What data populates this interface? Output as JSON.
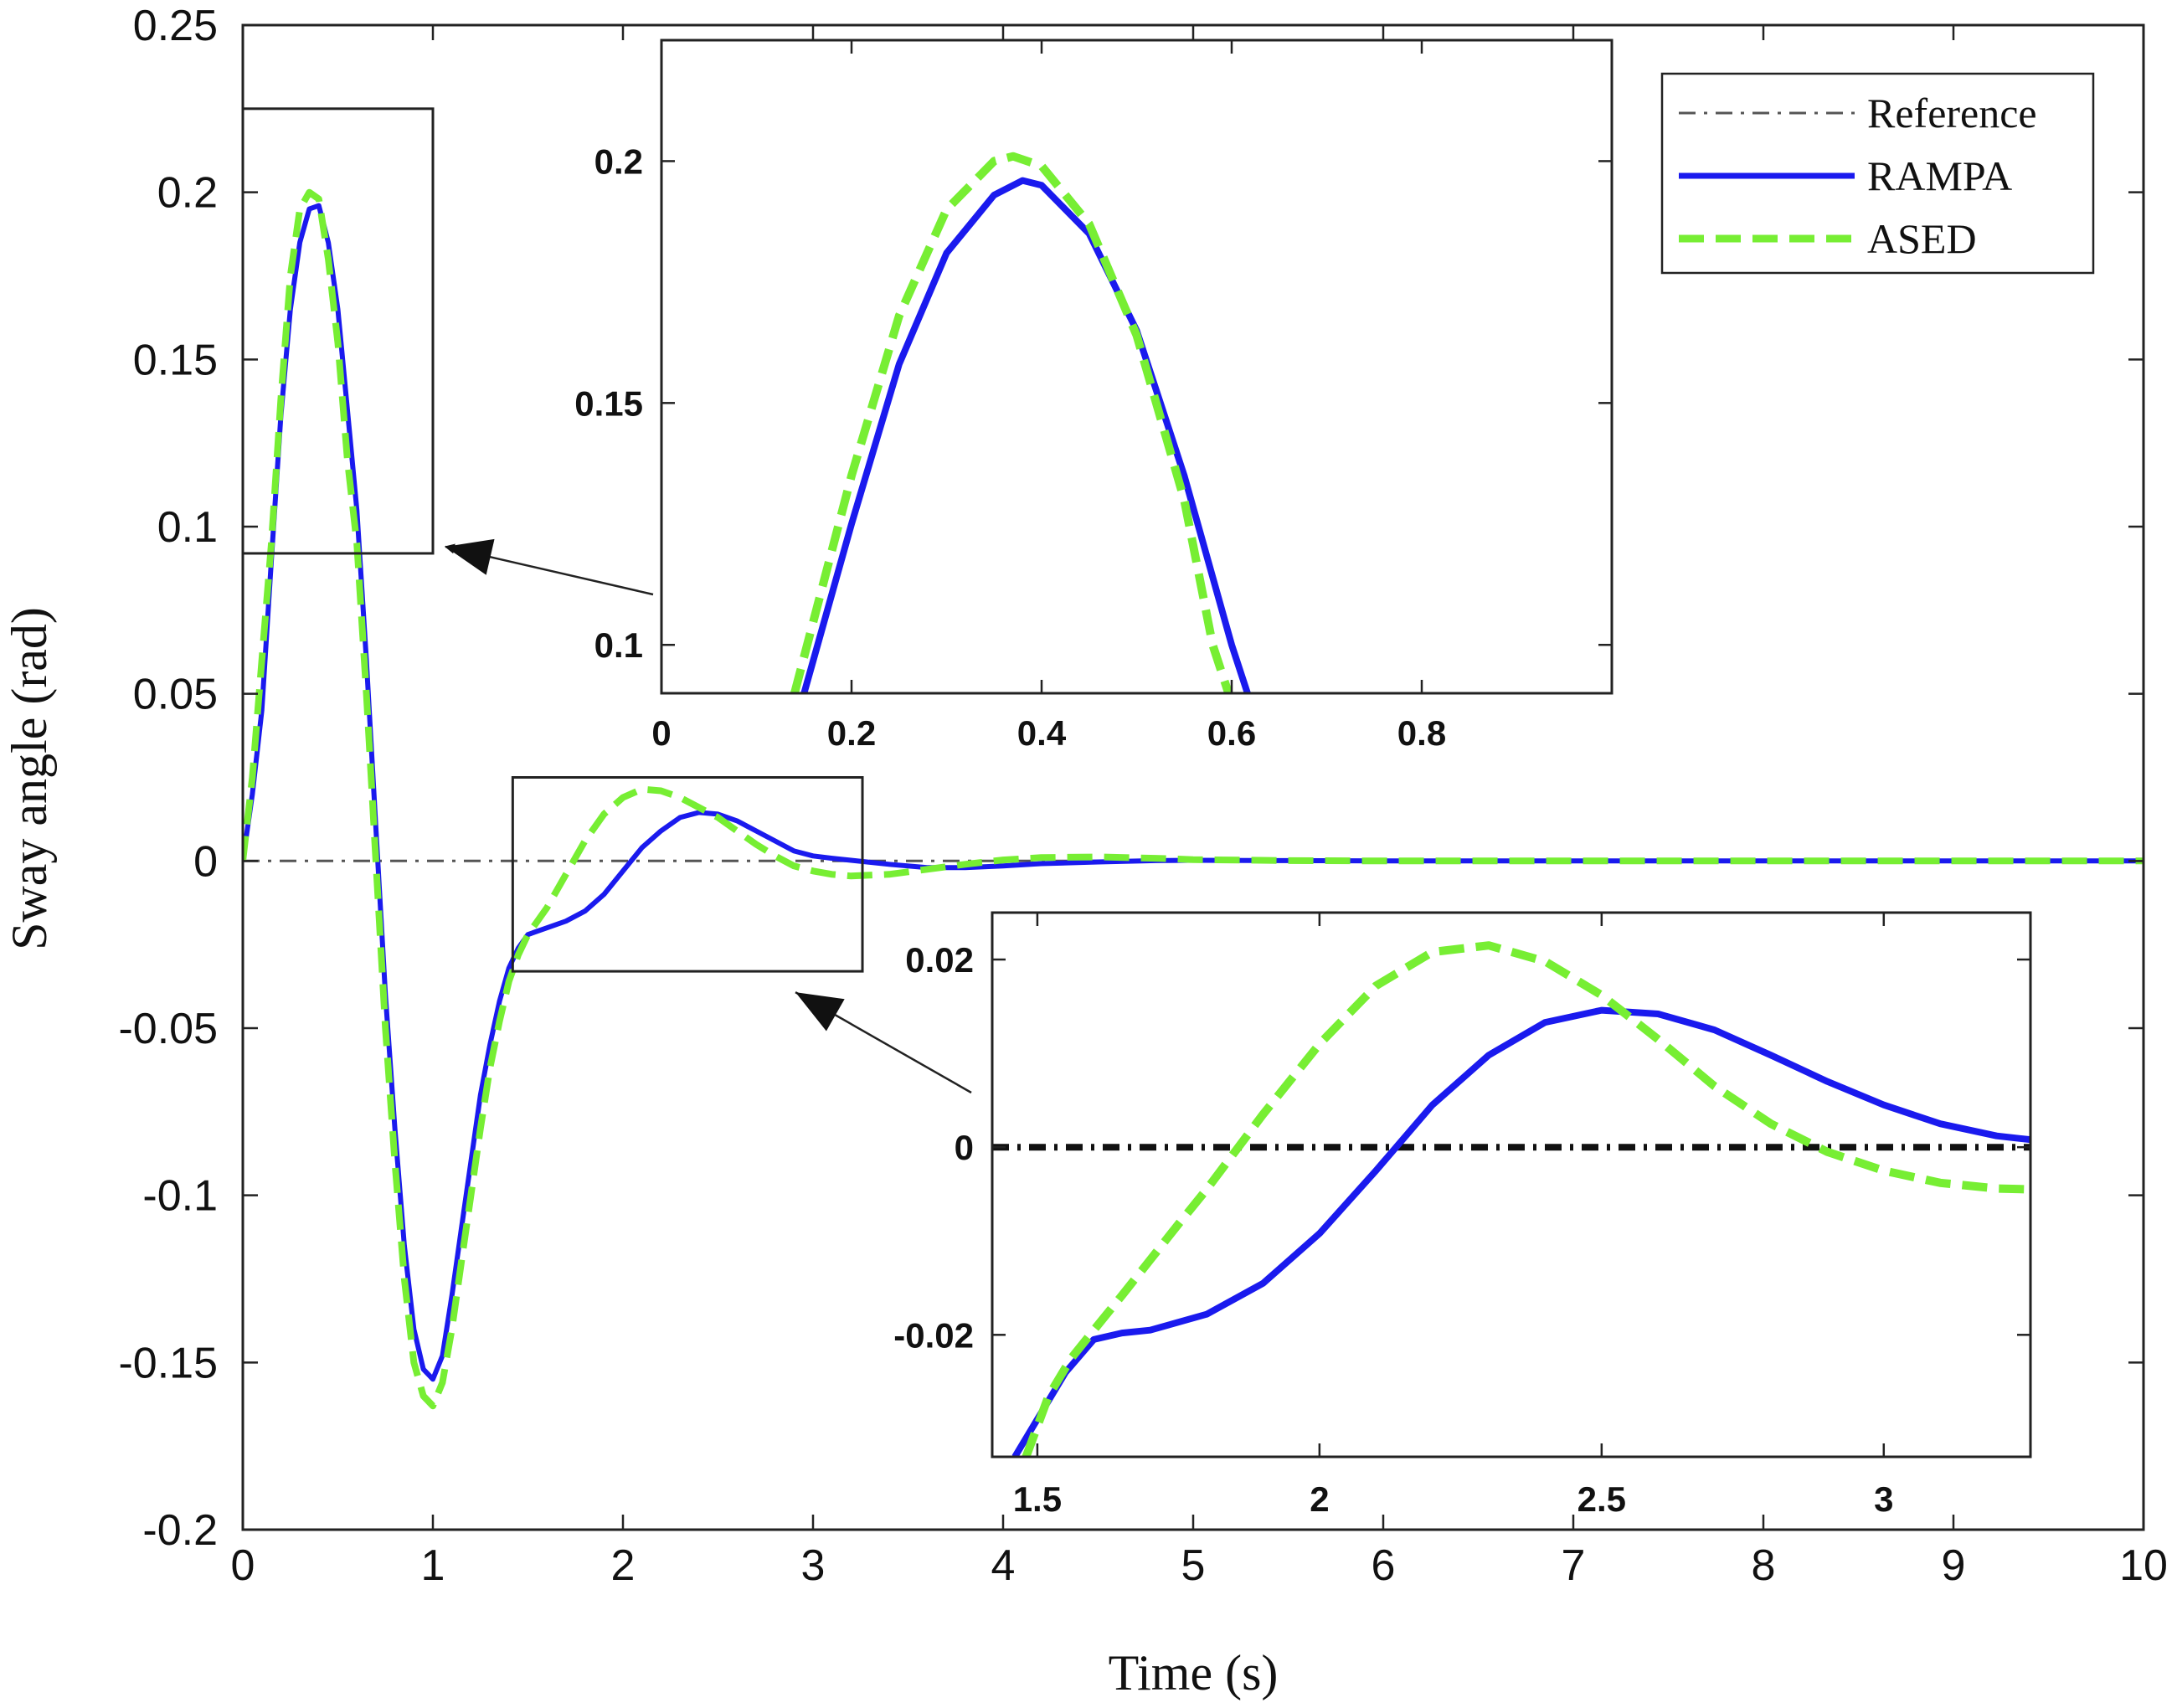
{
  "chart_data": [
    {
      "id": "main",
      "type": "line",
      "xlabel": "Time (s)",
      "ylabel": "Sway angle (rad)",
      "xlim": [
        0,
        10
      ],
      "ylim": [
        -0.2,
        0.25
      ],
      "xticks": [
        0,
        1,
        2,
        3,
        4,
        5,
        6,
        7,
        8,
        9,
        10
      ],
      "xtick_labels": [
        "0",
        "1",
        "2",
        "3",
        "4",
        "5",
        "6",
        "7",
        "8",
        "9",
        "10"
      ],
      "yticks": [
        -0.2,
        -0.15,
        -0.1,
        -0.05,
        0,
        0.05,
        0.1,
        0.15,
        0.2,
        0.25
      ],
      "ytick_labels": [
        "-0.2",
        "-0.15",
        "-0.1",
        "-0.05",
        "0",
        "0.05",
        "0.1",
        "0.15",
        "0.2",
        "0.25"
      ],
      "grid": false,
      "legend": {
        "placement": "top-right"
      },
      "series": [
        {
          "name": "Reference",
          "color": "#555555",
          "style": "dash-dot",
          "x": [
            0,
            10
          ],
          "y": [
            0,
            0
          ]
        },
        {
          "name": "RAMPA",
          "color": "#1a1aee",
          "style": "solid",
          "x": [
            0,
            0.05,
            0.1,
            0.15,
            0.2,
            0.25,
            0.3,
            0.35,
            0.4,
            0.45,
            0.5,
            0.55,
            0.6,
            0.65,
            0.7,
            0.75,
            0.8,
            0.85,
            0.9,
            0.95,
            1.0,
            1.05,
            1.1,
            1.15,
            1.2,
            1.25,
            1.3,
            1.35,
            1.4,
            1.45,
            1.5,
            1.6,
            1.7,
            1.8,
            1.9,
            2.0,
            2.1,
            2.2,
            2.3,
            2.4,
            2.5,
            2.6,
            2.7,
            2.8,
            2.9,
            3.0,
            3.1,
            3.2,
            3.4,
            3.6,
            3.8,
            4.0,
            4.2,
            4.5,
            4.8,
            5.0,
            5.5,
            6.0,
            7.0,
            8.0,
            9.0,
            10.0
          ],
          "y": [
            0,
            0.02,
            0.045,
            0.09,
            0.133,
            0.165,
            0.185,
            0.195,
            0.196,
            0.185,
            0.165,
            0.135,
            0.105,
            0.06,
            0.01,
            -0.04,
            -0.08,
            -0.115,
            -0.14,
            -0.152,
            -0.155,
            -0.148,
            -0.13,
            -0.11,
            -0.09,
            -0.07,
            -0.055,
            -0.042,
            -0.032,
            -0.026,
            -0.022,
            -0.02,
            -0.018,
            -0.015,
            -0.01,
            -0.003,
            0.004,
            0.009,
            0.013,
            0.0145,
            0.014,
            0.012,
            0.009,
            0.006,
            0.003,
            0.0015,
            0.0008,
            0.0002,
            -0.001,
            -0.002,
            -0.002,
            -0.0015,
            -0.0008,
            -0.0003,
            0.0001,
            0.0002,
            0.0001,
            0,
            0,
            0,
            0,
            0
          ]
        },
        {
          "name": "ASED",
          "color": "#77ee33",
          "style": "dashed",
          "x": [
            0,
            0.05,
            0.1,
            0.15,
            0.2,
            0.25,
            0.3,
            0.35,
            0.4,
            0.45,
            0.5,
            0.55,
            0.6,
            0.65,
            0.7,
            0.75,
            0.8,
            0.85,
            0.9,
            0.95,
            1.0,
            1.05,
            1.1,
            1.15,
            1.2,
            1.25,
            1.3,
            1.35,
            1.4,
            1.45,
            1.5,
            1.6,
            1.7,
            1.8,
            1.9,
            2.0,
            2.1,
            2.2,
            2.3,
            2.4,
            2.5,
            2.6,
            2.7,
            2.8,
            2.9,
            3.0,
            3.1,
            3.2,
            3.4,
            3.6,
            3.8,
            4.0,
            4.2,
            4.5,
            4.8,
            5.0,
            5.5,
            6.0,
            7.0,
            8.0,
            9.0,
            10.0
          ],
          "y": [
            0,
            0.025,
            0.06,
            0.095,
            0.138,
            0.175,
            0.195,
            0.2,
            0.198,
            0.18,
            0.155,
            0.12,
            0.095,
            0.05,
            0.0,
            -0.05,
            -0.09,
            -0.125,
            -0.15,
            -0.16,
            -0.163,
            -0.156,
            -0.14,
            -0.12,
            -0.1,
            -0.08,
            -0.062,
            -0.048,
            -0.036,
            -0.028,
            -0.022,
            -0.014,
            -0.004,
            0.006,
            0.014,
            0.019,
            0.0215,
            0.021,
            0.019,
            0.016,
            0.013,
            0.009,
            0.005,
            0.0015,
            -0.0015,
            -0.003,
            -0.004,
            -0.0045,
            -0.004,
            -0.0025,
            -0.001,
            0.0003,
            0.001,
            0.0012,
            0.0008,
            0.0004,
            0.0001,
            0,
            0,
            0,
            0,
            0
          ]
        }
      ],
      "zoom_boxes": [
        {
          "xlim": [
            0,
            1.0
          ],
          "ylim": [
            0.092,
            0.225
          ]
        },
        {
          "xlim": [
            1.42,
            3.26
          ],
          "ylim": [
            -0.033,
            0.025
          ]
        }
      ]
    },
    {
      "id": "inset-peak",
      "type": "line",
      "xlim": [
        0,
        1.0
      ],
      "ylim": [
        0.09,
        0.225
      ],
      "xticks": [
        0,
        0.2,
        0.4,
        0.6,
        0.8
      ],
      "xtick_labels": [
        "0",
        "0.2",
        "0.4",
        "0.6",
        "0.8"
      ],
      "yticks": [
        0.1,
        0.15,
        0.2
      ],
      "ytick_labels": [
        "0.1",
        "0.15",
        "0.2"
      ],
      "series": [
        {
          "name": "RAMPA",
          "color": "#1a1aee",
          "style": "solid",
          "x": [
            0.15,
            0.2,
            0.25,
            0.3,
            0.35,
            0.38,
            0.4,
            0.45,
            0.5,
            0.55,
            0.6,
            0.62
          ],
          "y": [
            0.09,
            0.125,
            0.158,
            0.181,
            0.193,
            0.196,
            0.195,
            0.185,
            0.165,
            0.135,
            0.1,
            0.088
          ]
        },
        {
          "name": "ASED",
          "color": "#77ee33",
          "style": "dashed",
          "x": [
            0.14,
            0.2,
            0.25,
            0.3,
            0.35,
            0.37,
            0.4,
            0.45,
            0.5,
            0.55,
            0.58,
            0.6
          ],
          "y": [
            0.09,
            0.135,
            0.168,
            0.19,
            0.2,
            0.201,
            0.199,
            0.187,
            0.164,
            0.13,
            0.1,
            0.088
          ]
        }
      ]
    },
    {
      "id": "inset-settle",
      "type": "line",
      "xlim": [
        1.42,
        3.26
      ],
      "ylim": [
        -0.033,
        0.025
      ],
      "xticks": [
        1.5,
        2,
        2.5,
        3
      ],
      "xtick_labels": [
        "1.5",
        "2",
        "2.5",
        "3"
      ],
      "yticks": [
        -0.02,
        0,
        0.02
      ],
      "ytick_labels": [
        "-0.02",
        "0",
        "0.02"
      ],
      "series": [
        {
          "name": "Reference",
          "color": "#111111",
          "style": "dash-dot",
          "x": [
            1.42,
            3.26
          ],
          "y": [
            0,
            0
          ]
        },
        {
          "name": "RAMPA",
          "color": "#1a1aee",
          "style": "solid",
          "x": [
            1.46,
            1.5,
            1.55,
            1.6,
            1.65,
            1.7,
            1.8,
            1.9,
            2.0,
            2.1,
            2.2,
            2.3,
            2.4,
            2.5,
            2.6,
            2.7,
            2.8,
            2.9,
            3.0,
            3.1,
            3.2,
            3.26
          ],
          "y": [
            -0.033,
            -0.029,
            -0.024,
            -0.0205,
            -0.0198,
            -0.0195,
            -0.0178,
            -0.0145,
            -0.0092,
            -0.0025,
            0.0045,
            0.0098,
            0.0133,
            0.0146,
            0.0142,
            0.0125,
            0.0098,
            0.007,
            0.0045,
            0.0025,
            0.0012,
            0.0008
          ]
        },
        {
          "name": "ASED",
          "color": "#77ee33",
          "style": "dashed",
          "x": [
            1.48,
            1.52,
            1.56,
            1.6,
            1.65,
            1.7,
            1.75,
            1.8,
            1.9,
            2.0,
            2.1,
            2.2,
            2.3,
            2.4,
            2.5,
            2.6,
            2.7,
            2.8,
            2.9,
            3.0,
            3.1,
            3.2,
            3.26
          ],
          "y": [
            -0.033,
            -0.0265,
            -0.0225,
            -0.0195,
            -0.0158,
            -0.012,
            -0.0082,
            -0.0045,
            0.0035,
            0.011,
            0.0172,
            0.0208,
            0.0215,
            0.0198,
            0.0162,
            0.0115,
            0.0065,
            0.0025,
            -0.0005,
            -0.0025,
            -0.0038,
            -0.0044,
            -0.0045
          ]
        }
      ]
    }
  ]
}
